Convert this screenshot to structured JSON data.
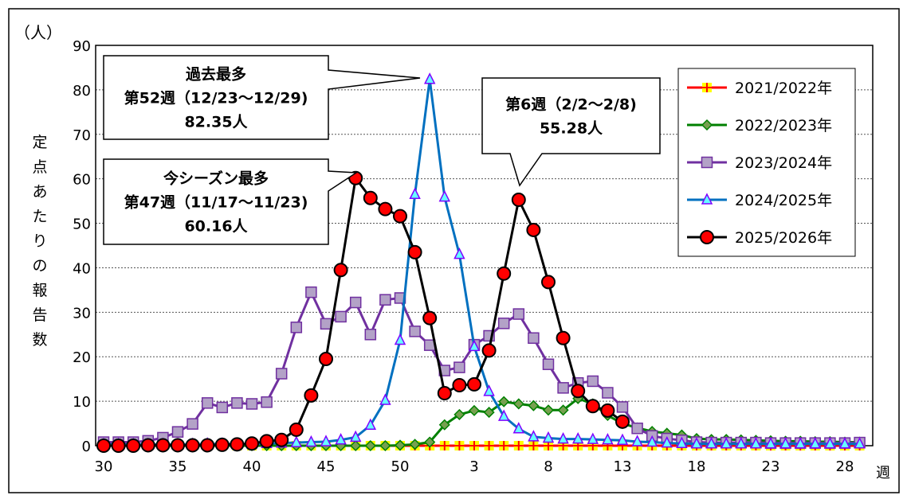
{
  "chart_data": {
    "type": "line",
    "unit_label": "（人）",
    "ylabel": "定点あたりの報告数",
    "xlabel": "週",
    "ylim": [
      0,
      90
    ],
    "yticks": [
      0,
      10,
      20,
      30,
      40,
      50,
      60,
      70,
      80,
      90
    ],
    "grid": true,
    "legend_placement": "top-right",
    "weeks": [
      30,
      31,
      32,
      33,
      34,
      35,
      36,
      37,
      38,
      39,
      40,
      41,
      42,
      43,
      44,
      45,
      46,
      47,
      48,
      49,
      50,
      51,
      52,
      1,
      2,
      3,
      4,
      5,
      6,
      7,
      8,
      9,
      10,
      11,
      12,
      13,
      14,
      15,
      16,
      17,
      18,
      19,
      20,
      21,
      22,
      23,
      24,
      25,
      26,
      27,
      28,
      29
    ],
    "xtick_labels": [
      "30",
      "35",
      "40",
      "45",
      "50",
      "3",
      "8",
      "13",
      "18",
      "23",
      "28"
    ],
    "series": [
      {
        "name": "2021/2022年",
        "color": "#ff0000",
        "marker": "plus",
        "marker_fill": "#ffff00",
        "values": [
          0,
          0,
          0,
          0,
          0,
          0,
          0,
          0,
          0,
          0,
          0,
          0,
          0,
          0,
          0,
          0,
          0,
          0,
          0,
          0,
          0,
          0,
          0,
          0,
          0,
          0,
          0,
          0,
          0,
          0,
          0,
          0,
          0,
          0,
          0,
          0,
          0,
          0,
          0,
          0,
          0,
          0,
          0,
          0,
          0,
          0,
          0,
          0,
          0,
          0,
          0,
          0
        ]
      },
      {
        "name": "2022/2023年",
        "color": "#008000",
        "marker": "diamond",
        "marker_fill": "#77a050",
        "values": [
          0,
          0,
          0,
          0,
          0,
          0,
          0,
          0,
          0,
          0,
          0,
          0,
          0,
          0,
          0,
          0,
          0,
          0,
          0,
          0,
          0.1,
          0.3,
          0.8,
          4.7,
          7.0,
          7.9,
          7.5,
          9.9,
          9.4,
          9.0,
          8.0,
          8.0,
          10.6,
          9.4,
          6.8,
          5.0,
          4.0,
          3.2,
          2.8,
          2.4,
          1.6,
          1.4,
          1.4,
          1.3,
          1.2,
          1.1,
          1.0,
          1.0,
          0.9,
          0.9,
          0.8,
          0.8
        ]
      },
      {
        "name": "2023/2024年",
        "color": "#7030a0",
        "marker": "square",
        "marker_fill": "#b3a2c7",
        "values": [
          0.8,
          0.8,
          0.8,
          1.1,
          1.8,
          3.1,
          4.9,
          9.6,
          8.6,
          9.6,
          9.4,
          9.8,
          16.2,
          26.6,
          34.5,
          27.4,
          29.0,
          32.2,
          25.0,
          32.8,
          33.2,
          25.7,
          22.6,
          16.9,
          17.6,
          22.7,
          24.7,
          27.5,
          29.6,
          24.2,
          18.3,
          13.0,
          14.1,
          14.5,
          11.9,
          8.7,
          3.9,
          2.2,
          1.6,
          1.2,
          0.8,
          0.7,
          0.7,
          0.7,
          0.7,
          0.6,
          0.6,
          0.6,
          0.6,
          0.6,
          0.6,
          0.7
        ]
      },
      {
        "name": "2024/2025年",
        "color": "#0070c0",
        "marker": "triangle",
        "marker_fill": "#66ffff",
        "values": [
          0.3,
          0.3,
          0.3,
          0.3,
          0.3,
          0.3,
          0.3,
          0.4,
          0.4,
          0.4,
          0.4,
          0.5,
          0.6,
          0.7,
          0.8,
          0.9,
          1.3,
          1.9,
          4.6,
          10.2,
          23.7,
          56.5,
          82.35,
          55.9,
          43.0,
          22.3,
          12.2,
          6.6,
          3.8,
          2.0,
          1.7,
          1.5,
          1.5,
          1.4,
          1.3,
          1.2,
          0.9,
          0.8,
          0.6,
          0.5,
          0.4,
          0.4,
          0.4,
          0.4,
          0.4,
          0.4,
          0.4,
          0.4,
          0.4,
          0.4,
          0.4,
          0.4
        ]
      },
      {
        "name": "2025/2026年",
        "color": "#000000",
        "marker": "circle",
        "marker_fill": "#ff0000",
        "values": [
          0,
          0,
          0,
          0.1,
          0.1,
          0.1,
          0.1,
          0.1,
          0.2,
          0.3,
          0.5,
          1.0,
          1.3,
          3.6,
          11.3,
          19.5,
          39.5,
          60.16,
          55.7,
          53.2,
          51.6,
          43.5,
          28.7,
          11.8,
          13.6,
          13.8,
          21.4,
          38.7,
          55.28,
          48.5,
          36.8,
          24.2,
          12.3,
          8.9,
          7.9,
          5.4
        ]
      }
    ],
    "annotations": [
      {
        "lines": [
          "過去最多",
          "第52週（12/23〜12/29)",
          "82.35人"
        ],
        "week_index": 22,
        "value": 82.35
      },
      {
        "lines": [
          "今シーズン最多",
          "第47週（11/17〜11/23)",
          "60.16人"
        ],
        "week_index": 17,
        "value": 60.16
      },
      {
        "lines": [
          "第6週（2/2〜2/8)",
          "55.28人"
        ],
        "week_index": 28,
        "value": 55.28
      }
    ]
  }
}
